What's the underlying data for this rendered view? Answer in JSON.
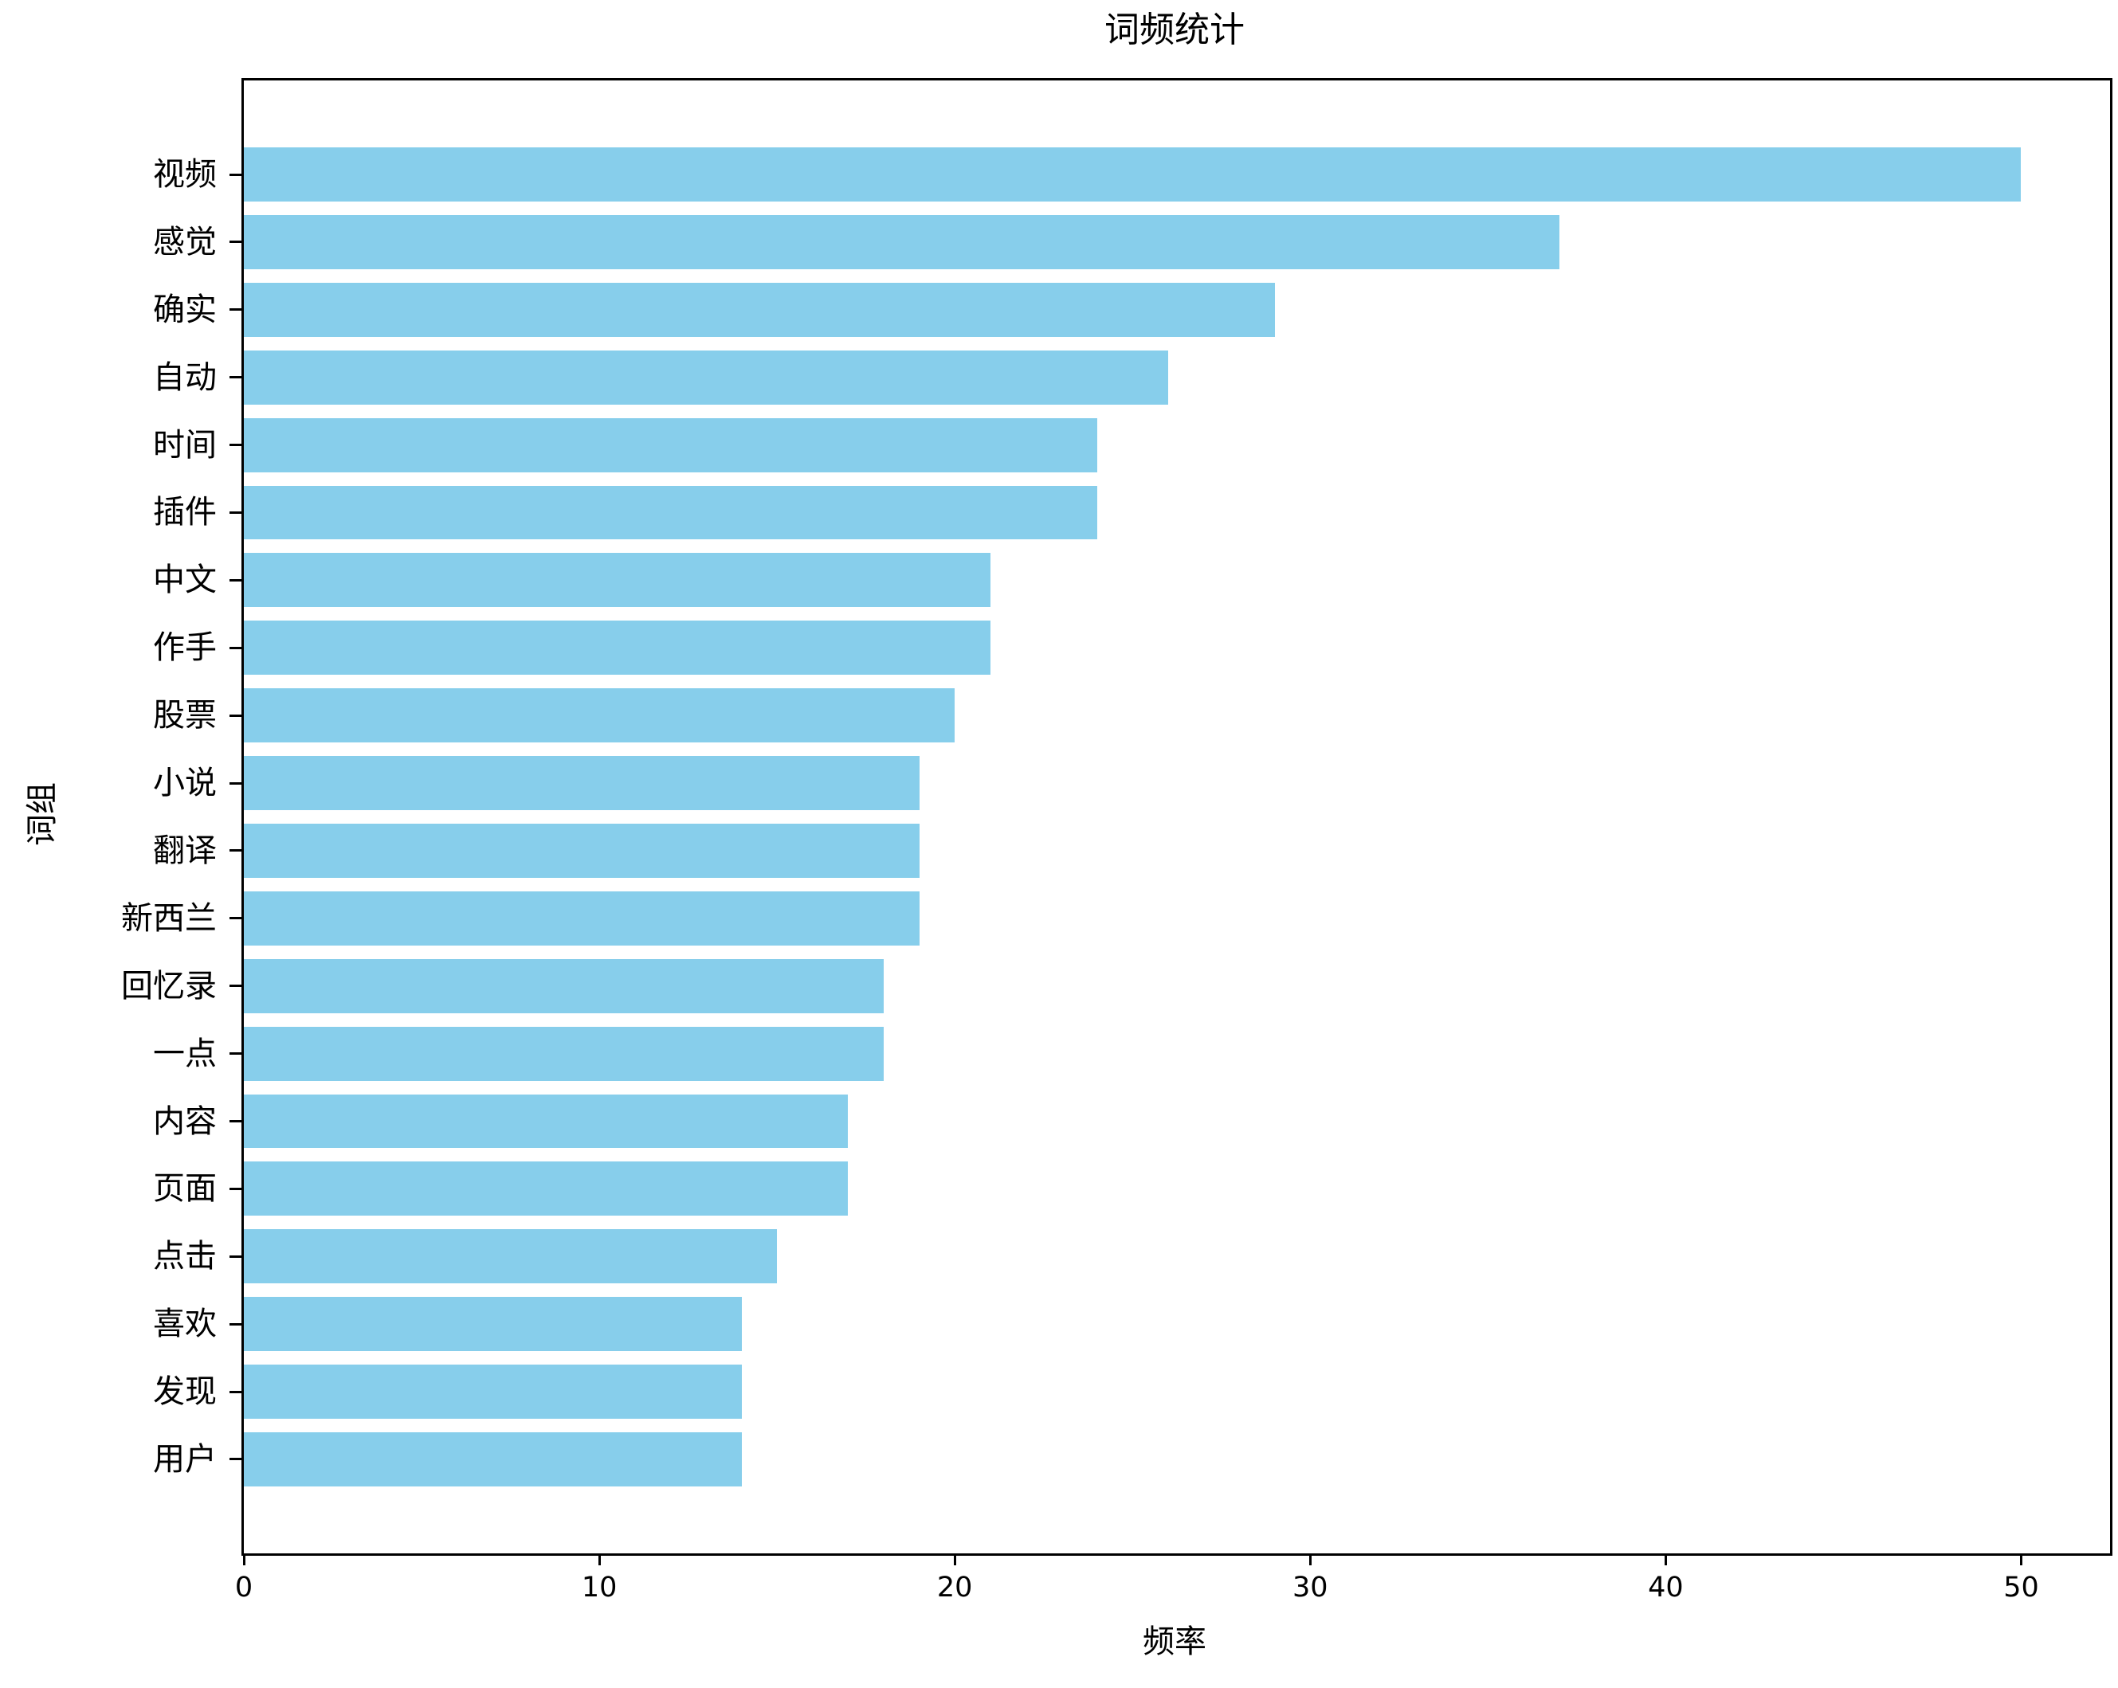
{
  "title": "词频统计",
  "x_axis_label": "频率",
  "y_axis_label": "词组",
  "colors": {
    "bar": "#87CEEB",
    "axis": "#000000",
    "background": "#ffffff",
    "text": "#000000"
  },
  "chart_data": {
    "type": "bar",
    "orientation": "horizontal",
    "title": "词频统计",
    "xlabel": "频率",
    "ylabel": "词组",
    "categories": [
      "视频",
      "感觉",
      "确实",
      "自动",
      "时间",
      "插件",
      "中文",
      "作手",
      "股票",
      "小说",
      "翻译",
      "新西兰",
      "回忆录",
      "一点",
      "内容",
      "页面",
      "点击",
      "喜欢",
      "发现",
      "用户"
    ],
    "values": [
      50,
      37,
      29,
      26,
      24,
      24,
      21,
      21,
      20,
      19,
      19,
      19,
      18,
      18,
      17,
      17,
      15,
      14,
      14,
      14
    ],
    "x_ticks": [
      0,
      10,
      20,
      30,
      40,
      50
    ],
    "xlim": [
      0,
      52.5
    ],
    "grid": false,
    "legend": null,
    "bar_color": "#87CEEB"
  }
}
